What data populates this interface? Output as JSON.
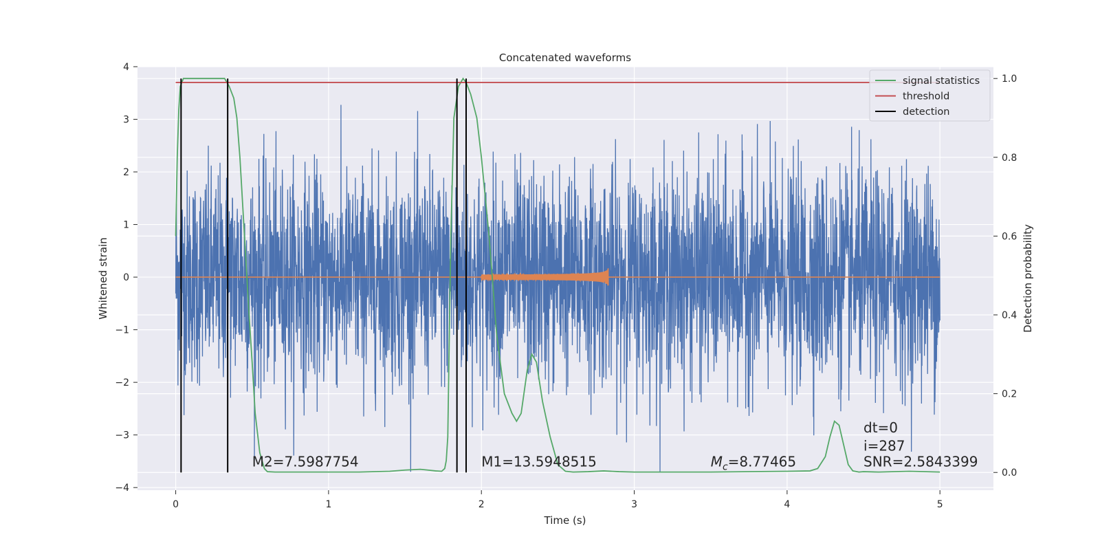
{
  "chart_data": {
    "type": "line",
    "title": "Concatenated waveforms",
    "xlabel": "Time (s)",
    "ylabel": "Whitened strain",
    "y2label": "Detection probability",
    "xlim": [
      -0.25,
      5.35
    ],
    "ylim": [
      -4.05,
      4.0
    ],
    "y2lim": [
      -0.045,
      1.03
    ],
    "xticks": [
      0,
      1,
      2,
      3,
      4,
      5
    ],
    "xtick_labels": [
      "0",
      "1",
      "2",
      "3",
      "4",
      "5"
    ],
    "yticks": [
      -4,
      -3,
      -2,
      -1,
      0,
      1,
      2,
      3,
      4
    ],
    "ytick_labels": [
      "−4",
      "−3",
      "−2",
      "−1",
      "0",
      "1",
      "2",
      "3",
      "4"
    ],
    "y2ticks": [
      0,
      0.2,
      0.4,
      0.6,
      0.8,
      1.0
    ],
    "y2tick_labels": [
      "0.0",
      "0.2",
      "0.4",
      "0.6",
      "0.8",
      "1.0"
    ],
    "grid": true,
    "legend_position": "top-right",
    "series": [
      {
        "name": "whitened strain",
        "color": "#4c72b0",
        "kind": "noise",
        "x_range": [
          0,
          5
        ],
        "typical_amplitude": 1.0,
        "extreme_range": [
          -3.7,
          3.65
        ]
      },
      {
        "name": "injected waveform",
        "color": "#dd8452",
        "kind": "chirp",
        "x_range": [
          0,
          5
        ],
        "chirp_window": [
          2.0,
          2.83
        ],
        "peak_amplitude": 0.45
      },
      {
        "name": "signal statistics",
        "color": "#55a868",
        "axis": "right",
        "x": [
          0.0,
          0.01,
          0.02,
          0.03,
          0.05,
          0.08,
          0.12,
          0.2,
          0.28,
          0.32,
          0.35,
          0.38,
          0.4,
          0.42,
          0.45,
          0.48,
          0.5,
          0.52,
          0.55,
          0.58,
          0.6,
          0.65,
          0.8,
          1.0,
          1.2,
          1.4,
          1.5,
          1.6,
          1.65,
          1.7,
          1.74,
          1.76,
          1.77,
          1.78,
          1.8,
          1.82,
          1.85,
          1.88,
          1.9,
          1.93,
          1.97,
          2.0,
          2.05,
          2.1,
          2.15,
          2.2,
          2.23,
          2.26,
          2.3,
          2.33,
          2.36,
          2.4,
          2.45,
          2.5,
          2.55,
          2.6,
          2.7,
          2.8,
          2.9,
          3.0,
          3.5,
          4.0,
          4.15,
          4.2,
          4.25,
          4.28,
          4.31,
          4.34,
          4.37,
          4.4,
          4.43,
          4.47,
          4.5,
          4.6,
          4.8,
          5.0
        ],
        "y": [
          0.6,
          0.8,
          0.92,
          0.98,
          1.0,
          1.0,
          1.0,
          1.0,
          1.0,
          1.0,
          0.98,
          0.95,
          0.9,
          0.8,
          0.6,
          0.4,
          0.28,
          0.15,
          0.05,
          0.01,
          0.002,
          0.001,
          0.001,
          0.001,
          0.001,
          0.003,
          0.006,
          0.008,
          0.006,
          0.004,
          0.003,
          0.01,
          0.03,
          0.09,
          0.6,
          0.9,
          0.98,
          1.0,
          0.99,
          0.96,
          0.9,
          0.8,
          0.6,
          0.35,
          0.2,
          0.15,
          0.13,
          0.15,
          0.26,
          0.3,
          0.28,
          0.18,
          0.09,
          0.02,
          0.003,
          0.001,
          0.002,
          0.004,
          0.002,
          0.001,
          0.001,
          0.003,
          0.004,
          0.01,
          0.04,
          0.09,
          0.13,
          0.12,
          0.07,
          0.02,
          0.004,
          0.001,
          0.002,
          0.001,
          0.003,
          0.001
        ]
      },
      {
        "name": "threshold",
        "color": "#c44e52",
        "axis": "right",
        "x": [
          0,
          5
        ],
        "y": [
          0.99,
          0.99
        ]
      },
      {
        "name": "detection",
        "color": "#000000",
        "axis": "right",
        "kind": "vlines",
        "x": [
          0.035,
          0.34,
          1.84,
          1.9
        ],
        "y_range": [
          0,
          1.0
        ]
      }
    ],
    "legend": [
      {
        "label": "signal statistics",
        "color": "#55a868"
      },
      {
        "label": "threshold",
        "color": "#c44e52"
      },
      {
        "label": "detection",
        "color": "#000000"
      }
    ],
    "annotations": [
      {
        "text": "M2=7.5987754",
        "x": 0.5,
        "y": -3.6
      },
      {
        "text": "M1=13.5948515",
        "x": 2.0,
        "y": -3.6
      },
      {
        "text_prefix": "M",
        "text_sub": "c",
        "text_suffix": "=8.77465",
        "x": 3.5,
        "y": -3.6
      },
      {
        "text": "dt=0",
        "x": 4.5,
        "y": -2.95
      },
      {
        "text": "i=287",
        "x": 4.5,
        "y": -3.3
      },
      {
        "text": "SNR=2.5843399",
        "x": 4.5,
        "y": -3.6
      }
    ]
  }
}
